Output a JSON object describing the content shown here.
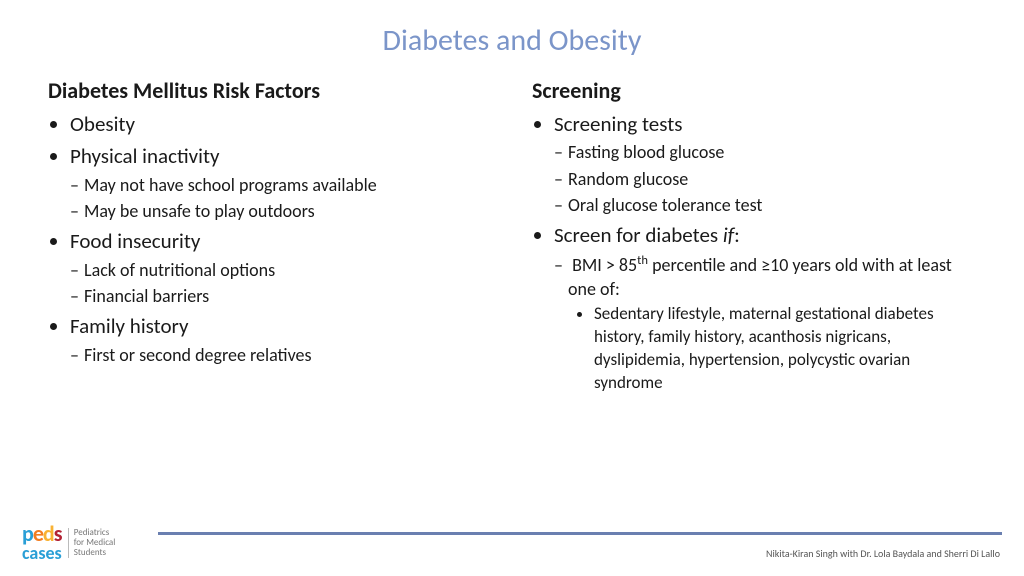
{
  "colors": {
    "title": "#7b95c9",
    "text": "#1a1a1a",
    "footer_line": "#6a7fb0",
    "background": "#ffffff"
  },
  "title": "Diabetes and Obesity",
  "left": {
    "heading": "Diabetes Mellitus Risk Factors",
    "b1": "Obesity",
    "b2": "Physical inactivity",
    "b2_s1": "May not have school programs available",
    "b2_s2": "May be unsafe to play outdoors",
    "b3": "Food insecurity",
    "b3_s1": "Lack of nutritional options",
    "b3_s2": "Financial barriers",
    "b4": "Family history",
    "b4_s1": "First or second degree relatives"
  },
  "right": {
    "heading": "Screening",
    "b1": "Screening tests",
    "b1_s1": "Fasting blood glucose",
    "b1_s2": "Random glucose",
    "b1_s3": "Oral glucose tolerance test",
    "b2_pre": "Screen for diabetes ",
    "b2_it": "if",
    "b2_post": ":",
    "b2_s1_pre": "BMI > 85",
    "b2_s1_sup": "th",
    "b2_s1_post": " percentile and ≥10 years old with at least one of:",
    "b2_s1_t1": "Sedentary lifestyle, maternal gestational diabetes history, family history, acanthosis nigricans, dyslipidemia, hypertension, polycystic ovarian syndrome"
  },
  "footer": {
    "logo_tag_l1": "Pediatrics",
    "logo_tag_l2": "for Medical",
    "logo_tag_l3": "Students",
    "credits": "Nikita-Kiran Singh with Dr. Lola Baydala and Sherri Di Lallo"
  }
}
